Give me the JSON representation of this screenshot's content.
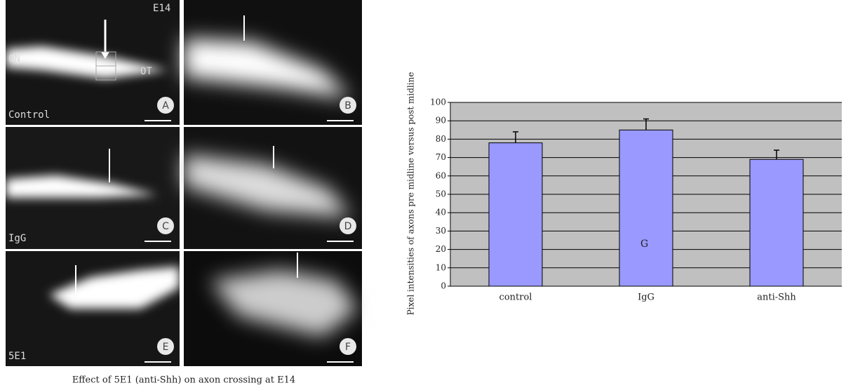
{
  "figure": {
    "stage": "E14",
    "on_label": "ON",
    "ot_label": "OT",
    "panels": [
      {
        "letter": "A",
        "condition": "Control"
      },
      {
        "letter": "B"
      },
      {
        "letter": "C",
        "condition": "IgG"
      },
      {
        "letter": "D"
      },
      {
        "letter": "E",
        "condition": "5E1"
      },
      {
        "letter": "F"
      }
    ],
    "caption": "Effect of 5E1 (anti-Shh) on axon crossing at E14"
  },
  "chart_data": {
    "type": "bar",
    "y_label": "Pixel intensities of axons pre midline versus post midline",
    "categories": [
      "control",
      "IgG",
      "anti-Shh"
    ],
    "values": [
      78,
      85,
      69
    ],
    "errors": [
      6,
      6,
      5
    ],
    "color": "#9999ff",
    "ylim": [
      0,
      100
    ],
    "yticks": [
      0,
      10,
      20,
      30,
      40,
      50,
      60,
      70,
      80,
      90,
      100
    ],
    "grid": true,
    "annotation": "G"
  }
}
